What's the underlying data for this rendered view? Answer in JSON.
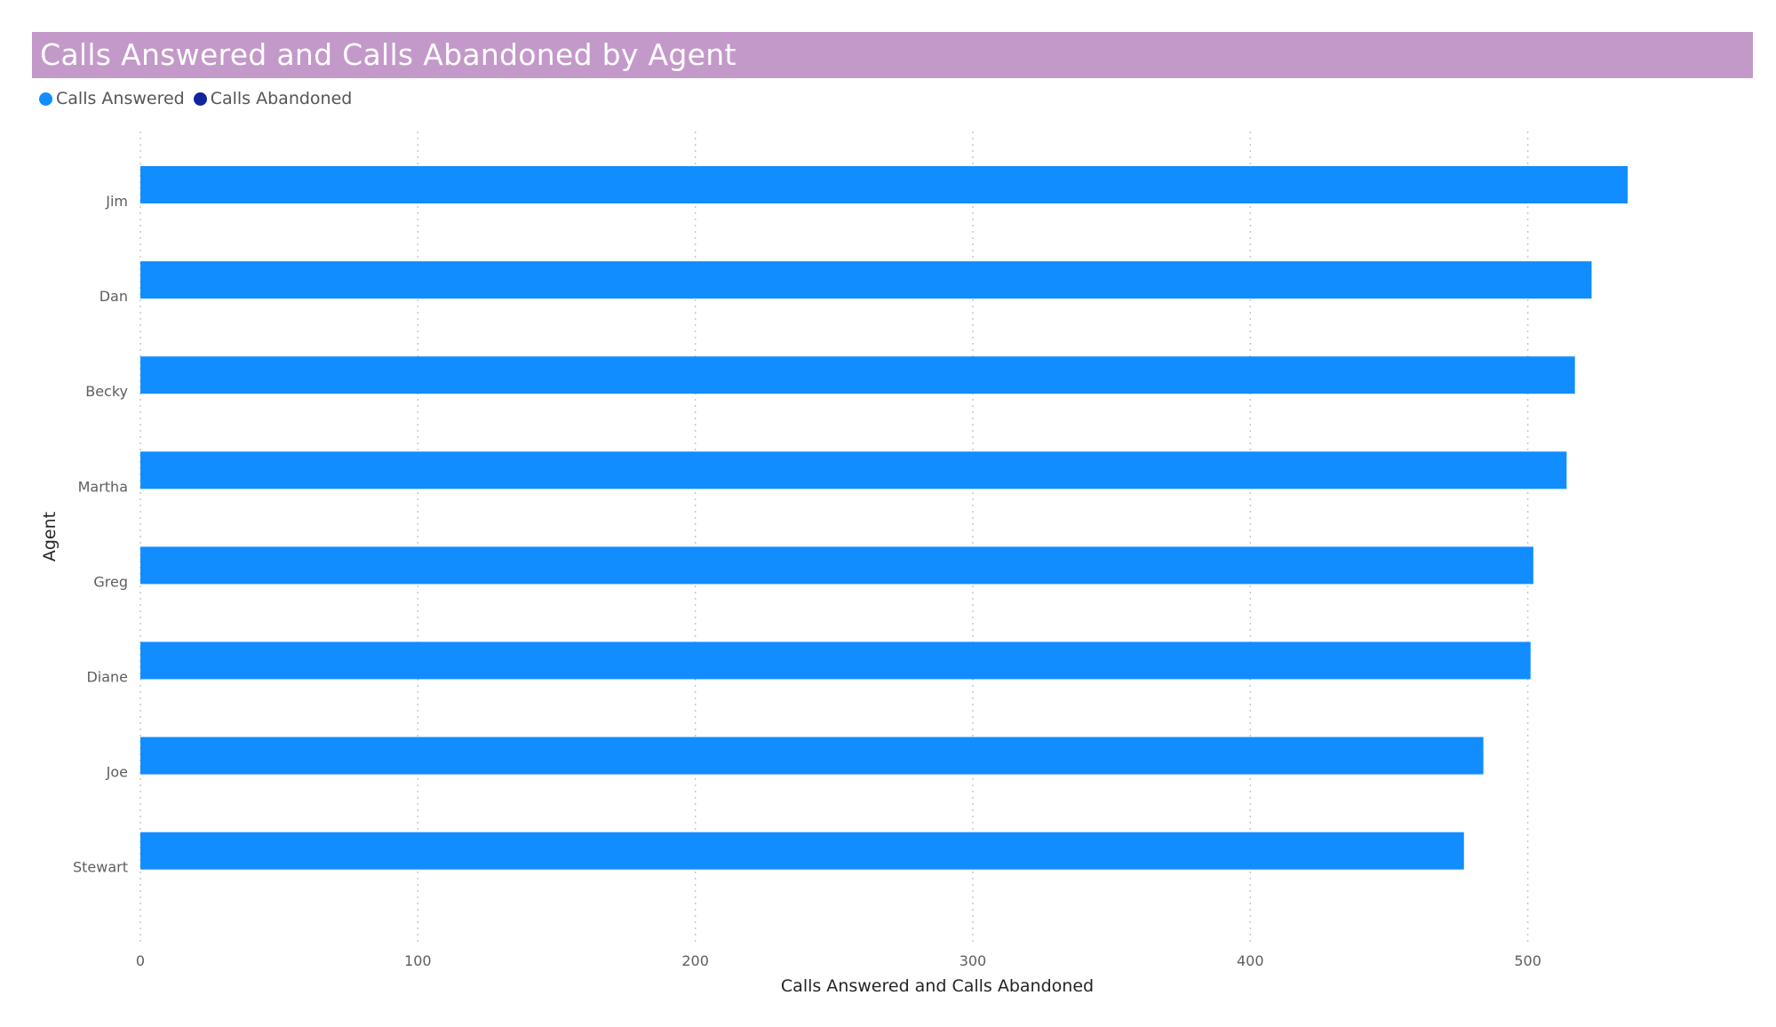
{
  "title": "Calls Answered and Calls Abandoned by Agent",
  "legend": {
    "items": [
      {
        "label": "Calls Answered",
        "color": "#118dff"
      },
      {
        "label": "Calls Abandoned",
        "color": "#12239e"
      }
    ]
  },
  "colors": {
    "title_bar": "#c399c9",
    "bar": "#118dff",
    "grid": "#c8c8c8"
  },
  "chart_data": {
    "type": "bar",
    "orientation": "horizontal",
    "title": "Calls Answered and Calls Abandoned by Agent",
    "categories": [
      "Jim",
      "Dan",
      "Becky",
      "Martha",
      "Greg",
      "Diane",
      "Joe",
      "Stewart"
    ],
    "series": [
      {
        "name": "Calls Answered",
        "values": [
          536,
          523,
          517,
          514,
          502,
          501,
          484,
          477
        ]
      },
      {
        "name": "Calls Abandoned",
        "values": [
          0,
          0,
          0,
          0,
          0,
          0,
          0,
          0
        ]
      }
    ],
    "xlabel": "Calls Answered and Calls Abandoned",
    "ylabel": "Agent",
    "xlim": [
      0,
      560
    ],
    "xticks": [
      0,
      100,
      200,
      300,
      400,
      500
    ],
    "grid": "vertical-dotted",
    "legend_position": "top-left"
  }
}
